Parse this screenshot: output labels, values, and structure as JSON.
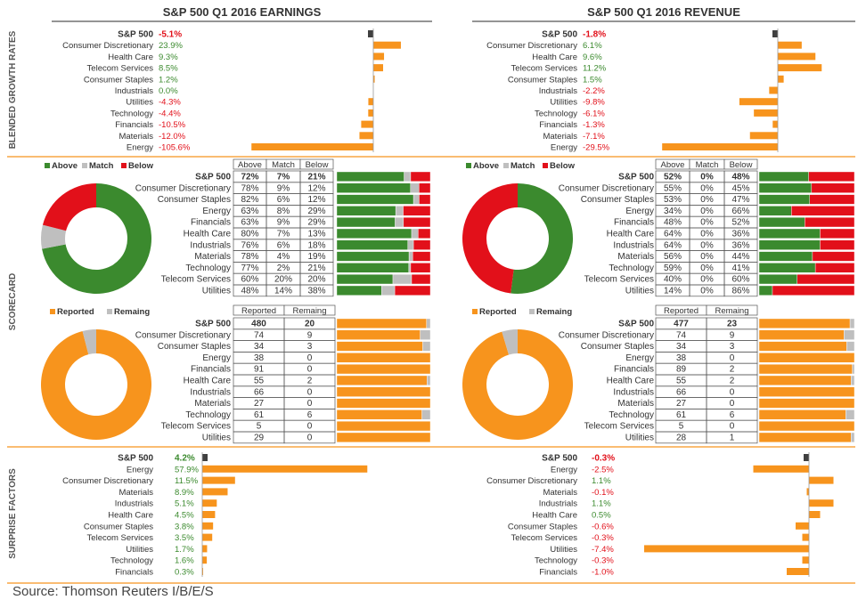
{
  "colors": {
    "orange": "#F7941D",
    "green": "#3B8A2E",
    "red": "#E2101A",
    "gray": "#BFBFBF",
    "dark": "#404040",
    "pos_text": "#3B8A2E",
    "neg_text": "#E2101A",
    "divider": "#F7941D",
    "section_label": "#555555"
  },
  "panels": [
    {
      "title": "S&P 500 Q1 2016 EARNINGS"
    },
    {
      "title": "S&P 500 Q1 2016 REVENUE"
    }
  ],
  "sections": {
    "growth": "BLENDED GROWTH RATES",
    "scorecard": "SCORECARD",
    "surprise": "SURPRISE FACTORS"
  },
  "source": "Source: Thomson Reuters I/B/E/S",
  "chart_data": [
    {
      "type": "bar",
      "panel": "earnings",
      "section": "BLENDED GROWTH RATES",
      "categories": [
        "S&P 500",
        "Consumer Discretionary",
        "Health Care",
        "Telecom Services",
        "Consumer Staples",
        "Industrials",
        "Utilities",
        "Technology",
        "Financials",
        "Materials",
        "Energy"
      ],
      "values": [
        -5.1,
        23.9,
        9.3,
        8.5,
        1.2,
        0.0,
        -4.3,
        -4.4,
        -10.5,
        -12.0,
        -105.6
      ],
      "labels": [
        "-5.1%",
        "23.9%",
        "9.3%",
        "8.5%",
        "1.2%",
        "0.0%",
        "-4.3%",
        "-4.4%",
        "-10.5%",
        "-12.0%",
        "-105.6%"
      ]
    },
    {
      "type": "bar",
      "panel": "revenue",
      "section": "BLENDED GROWTH RATES",
      "categories": [
        "S&P 500",
        "Consumer Discretionary",
        "Health Care",
        "Telecom Services",
        "Consumer Staples",
        "Industrials",
        "Utilities",
        "Technology",
        "Financials",
        "Materials",
        "Energy"
      ],
      "values": [
        -1.8,
        6.1,
        9.6,
        11.2,
        1.5,
        -2.2,
        -9.8,
        -6.1,
        -1.3,
        -7.1,
        -29.5
      ],
      "labels": [
        "-1.8%",
        "6.1%",
        "9.6%",
        "11.2%",
        "1.5%",
        "-2.2%",
        "-9.8%",
        "-6.1%",
        "-1.3%",
        "-7.1%",
        "-29.5%"
      ]
    },
    {
      "type": "table",
      "panel": "earnings",
      "section": "SCORECARD",
      "legend": [
        "Above",
        "Match",
        "Below"
      ],
      "columns": [
        "Above",
        "Match",
        "Below"
      ],
      "categories": [
        "S&P 500",
        "Consumer Discretionary",
        "Consumer Staples",
        "Energy",
        "Financials",
        "Health Care",
        "Industrials",
        "Materials",
        "Technology",
        "Telecom Services",
        "Utilities"
      ],
      "series": [
        {
          "name": "Above",
          "values": [
            72,
            78,
            82,
            63,
            63,
            80,
            76,
            78,
            77,
            60,
            48
          ]
        },
        {
          "name": "Match",
          "values": [
            7,
            9,
            6,
            8,
            9,
            7,
            6,
            4,
            2,
            20,
            14
          ]
        },
        {
          "name": "Below",
          "values": [
            21,
            12,
            12,
            29,
            29,
            13,
            18,
            19,
            21,
            20,
            38
          ]
        }
      ],
      "labels": [
        [
          "72%",
          "7%",
          "21%"
        ],
        [
          "78%",
          "9%",
          "12%"
        ],
        [
          "82%",
          "6%",
          "12%"
        ],
        [
          "63%",
          "8%",
          "29%"
        ],
        [
          "63%",
          "9%",
          "29%"
        ],
        [
          "80%",
          "7%",
          "13%"
        ],
        [
          "76%",
          "6%",
          "18%"
        ],
        [
          "78%",
          "4%",
          "19%"
        ],
        [
          "77%",
          "2%",
          "21%"
        ],
        [
          "60%",
          "20%",
          "20%"
        ],
        [
          "48%",
          "14%",
          "38%"
        ]
      ]
    },
    {
      "type": "table",
      "panel": "revenue",
      "section": "SCORECARD",
      "legend": [
        "Above",
        "Match",
        "Below"
      ],
      "columns": [
        "Above",
        "Match",
        "Below"
      ],
      "categories": [
        "S&P 500",
        "Consumer Discretionary",
        "Consumer Staples",
        "Energy",
        "Financials",
        "Health Care",
        "Industrials",
        "Materials",
        "Technology",
        "Telecom Services",
        "Utilities"
      ],
      "series": [
        {
          "name": "Above",
          "values": [
            52,
            55,
            53,
            34,
            48,
            64,
            64,
            56,
            59,
            40,
            14
          ]
        },
        {
          "name": "Match",
          "values": [
            0,
            0,
            0,
            0,
            0,
            0,
            0,
            0,
            0,
            0,
            0
          ]
        },
        {
          "name": "Below",
          "values": [
            48,
            45,
            47,
            66,
            52,
            36,
            36,
            44,
            41,
            60,
            86
          ]
        }
      ],
      "labels": [
        [
          "52%",
          "0%",
          "48%"
        ],
        [
          "55%",
          "0%",
          "45%"
        ],
        [
          "53%",
          "0%",
          "47%"
        ],
        [
          "34%",
          "0%",
          "66%"
        ],
        [
          "48%",
          "0%",
          "52%"
        ],
        [
          "64%",
          "0%",
          "36%"
        ],
        [
          "64%",
          "0%",
          "36%"
        ],
        [
          "56%",
          "0%",
          "44%"
        ],
        [
          "59%",
          "0%",
          "41%"
        ],
        [
          "40%",
          "0%",
          "60%"
        ],
        [
          "14%",
          "0%",
          "86%"
        ]
      ]
    },
    {
      "type": "table",
      "panel": "earnings",
      "section": "SCORECARD",
      "legend": [
        "Reported",
        "Remaing"
      ],
      "columns": [
        "Reported",
        "Remaing"
      ],
      "categories": [
        "S&P 500",
        "Consumer Discretionary",
        "Consumer Staples",
        "Energy",
        "Financials",
        "Health Care",
        "Industrials",
        "Materials",
        "Technology",
        "Telecom Services",
        "Utilities"
      ],
      "series": [
        {
          "name": "Reported",
          "values": [
            480,
            74,
            34,
            38,
            91,
            55,
            66,
            27,
            61,
            5,
            29
          ]
        },
        {
          "name": "Remaing",
          "values": [
            20,
            9,
            3,
            0,
            0,
            2,
            0,
            0,
            6,
            0,
            0
          ]
        }
      ]
    },
    {
      "type": "table",
      "panel": "revenue",
      "section": "SCORECARD",
      "legend": [
        "Reported",
        "Remaing"
      ],
      "columns": [
        "Reported",
        "Remaing"
      ],
      "categories": [
        "S&P 500",
        "Consumer Discretionary",
        "Consumer Staples",
        "Energy",
        "Financials",
        "Health Care",
        "Industrials",
        "Materials",
        "Technology",
        "Telecom Services",
        "Utilities"
      ],
      "series": [
        {
          "name": "Reported",
          "values": [
            477,
            74,
            34,
            38,
            89,
            55,
            66,
            27,
            61,
            5,
            28
          ]
        },
        {
          "name": "Remaing",
          "values": [
            23,
            9,
            3,
            0,
            2,
            2,
            0,
            0,
            6,
            0,
            1
          ]
        }
      ]
    },
    {
      "type": "bar",
      "panel": "earnings",
      "section": "SURPRISE FACTORS",
      "categories": [
        "S&P 500",
        "Energy",
        "Consumer Discretionary",
        "Materials",
        "Industrials",
        "Health Care",
        "Consumer Staples",
        "Telecom Services",
        "Utilities",
        "Technology",
        "Financials"
      ],
      "values": [
        4.2,
        57.9,
        11.5,
        8.9,
        5.1,
        4.5,
        3.8,
        3.5,
        1.7,
        1.6,
        0.3
      ],
      "labels": [
        "4.2%",
        "57.9%",
        "11.5%",
        "8.9%",
        "5.1%",
        "4.5%",
        "3.8%",
        "3.5%",
        "1.7%",
        "1.6%",
        "0.3%"
      ]
    },
    {
      "type": "bar",
      "panel": "revenue",
      "section": "SURPRISE FACTORS",
      "categories": [
        "S&P 500",
        "Energy",
        "Consumer Discretionary",
        "Materials",
        "Industrials",
        "Health Care",
        "Consumer Staples",
        "Telecom Services",
        "Utilities",
        "Technology",
        "Financials"
      ],
      "values": [
        -0.3,
        -2.5,
        1.1,
        -0.1,
        1.1,
        0.5,
        -0.6,
        -0.3,
        -7.4,
        -0.3,
        -1.0
      ],
      "labels": [
        "-0.3%",
        "-2.5%",
        "1.1%",
        "-0.1%",
        "1.1%",
        "0.5%",
        "-0.6%",
        "-0.3%",
        "-7.4%",
        "-0.3%",
        "-1.0%"
      ]
    }
  ]
}
